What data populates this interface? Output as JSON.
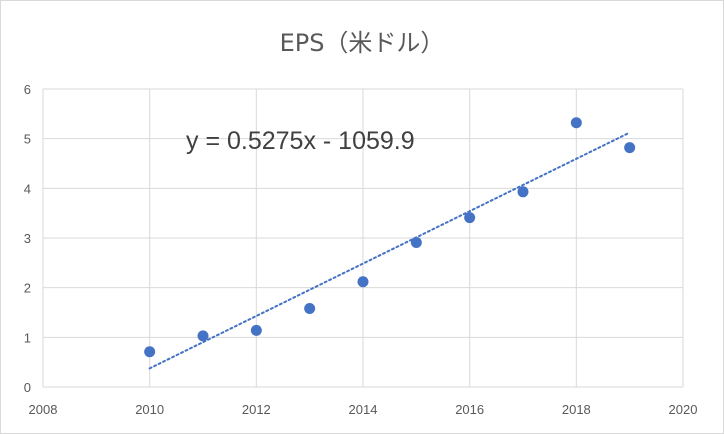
{
  "chart_data": {
    "type": "scatter",
    "title": "EPS（米ドル）",
    "xlabel": "",
    "ylabel": "",
    "xlim": [
      2008,
      2020
    ],
    "ylim": [
      0,
      6
    ],
    "x_ticks": [
      2008,
      2010,
      2012,
      2014,
      2016,
      2018,
      2020
    ],
    "y_ticks": [
      0,
      1,
      2,
      3,
      4,
      5,
      6
    ],
    "grid": true,
    "legend": "none",
    "marker_color": "#4472C4",
    "series": [
      {
        "x": [
          2010,
          2011,
          2012,
          2013,
          2014,
          2015,
          2016,
          2017,
          2018,
          2019
        ],
        "y": [
          0.71,
          1.03,
          1.14,
          1.58,
          2.12,
          2.91,
          3.41,
          3.93,
          5.32,
          4.82
        ]
      }
    ],
    "trendline": {
      "type": "linear",
      "slope": 0.5275,
      "intercept": -1059.9,
      "x_range": [
        2010,
        2019
      ],
      "style": "dotted",
      "color": "#4472C4",
      "equation_label": "y = 0.5275x - 1059.9"
    }
  }
}
